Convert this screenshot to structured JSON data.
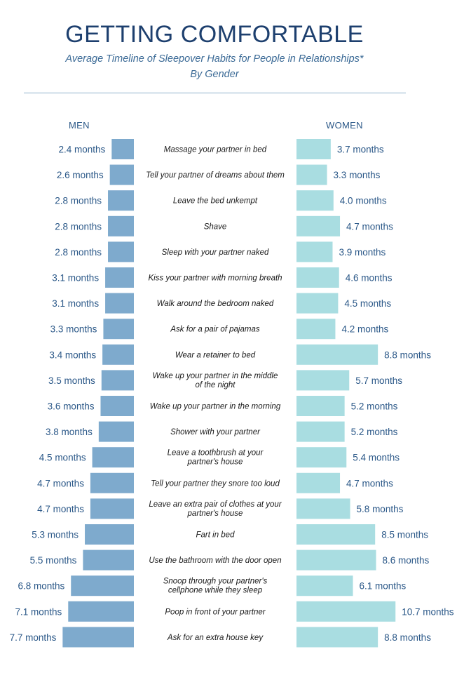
{
  "chart_data": {
    "type": "bar",
    "title": "GETTING COMFORTABLE",
    "subtitle_lines": [
      "Average Timeline of Sleepover Habits for People in Relationships*",
      "By Gender"
    ],
    "series": [
      {
        "name": "MEN",
        "values": [
          2.4,
          2.6,
          2.8,
          2.8,
          2.8,
          3.1,
          3.1,
          3.3,
          3.4,
          3.5,
          3.6,
          3.8,
          4.5,
          4.7,
          4.7,
          5.3,
          5.5,
          6.8,
          7.1,
          7.7
        ],
        "color": "#7eaacd"
      },
      {
        "name": "WOMEN",
        "values": [
          3.7,
          3.3,
          4.0,
          4.7,
          3.9,
          4.6,
          4.5,
          4.2,
          8.8,
          5.7,
          5.2,
          5.2,
          5.4,
          4.7,
          5.8,
          8.5,
          8.6,
          6.1,
          10.7,
          8.8
        ],
        "color": "#a9dde1"
      }
    ],
    "value_labels_men": [
      "2.4 months",
      "2.6 months",
      "2.8 months",
      "2.8 months",
      "2.8 months",
      "3.1 months",
      "3.1 months",
      "3.3 months",
      "3.4 months",
      "3.5 months",
      "3.6 months",
      "3.8 months",
      "4.5 months",
      "4.7 months",
      "4.7 months",
      "5.3 months",
      "5.5 months",
      "6.8 months",
      "7.1 months",
      "7.7 months"
    ],
    "value_labels_women": [
      "3.7 months",
      "3.3 months",
      "4.0 months",
      "4.7 months",
      "3.9 months",
      "4.6 months",
      "4.5 months",
      "4.2 months",
      "8.8 months",
      "5.7 months",
      "5.2 months",
      "5.2 months",
      "5.4 months",
      "4.7 months",
      "5.8 months",
      "8.5 months",
      "8.6 months",
      "6.1 months",
      "10.7 months",
      "8.8 months"
    ],
    "categories": [
      [
        "Massage your partner in bed"
      ],
      [
        "Tell your partner of dreams about them"
      ],
      [
        "Leave the bed unkempt"
      ],
      [
        "Shave"
      ],
      [
        "Sleep with your partner naked"
      ],
      [
        "Kiss your partner with morning breath"
      ],
      [
        "Walk around the bedroom naked"
      ],
      [
        "Ask for a pair of pajamas"
      ],
      [
        "Wear a retainer to bed"
      ],
      [
        "Wake up your partner in the middle",
        "of the night"
      ],
      [
        "Wake up your partner in the morning"
      ],
      [
        "Shower with your partner"
      ],
      [
        "Leave a toothbrush at your",
        "partner's house"
      ],
      [
        "Tell your partner they snore too loud"
      ],
      [
        "Leave an extra pair of clothes at your",
        "partner's house"
      ],
      [
        "Fart in bed"
      ],
      [
        "Use the bathroom with the door open"
      ],
      [
        "Snoop through your partner's",
        "cellphone while they sleep"
      ],
      [
        "Poop in front of your partner"
      ],
      [
        "Ask for an extra house key"
      ]
    ],
    "layout": "diverging horizontal bars, men left, women right"
  }
}
